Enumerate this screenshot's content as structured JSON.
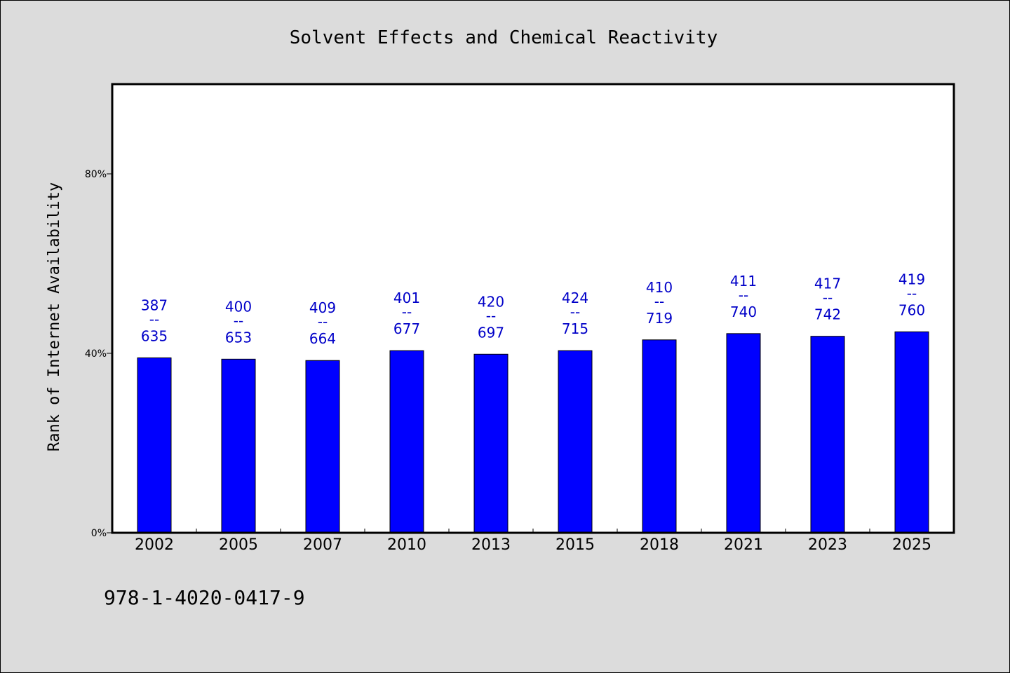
{
  "chart_data": {
    "type": "bar",
    "title": "Solvent Effects and Chemical Reactivity",
    "ylabel": "Rank of Internet Availability",
    "xlabel": "",
    "ylim": [
      0,
      100
    ],
    "yticks": [
      0,
      40,
      80
    ],
    "ytick_labels": [
      "0%",
      "40%",
      "80%"
    ],
    "categories": [
      "2002",
      "2005",
      "2007",
      "2010",
      "2013",
      "2015",
      "2018",
      "2021",
      "2023",
      "2025"
    ],
    "values": [
      39,
      38.7,
      38.4,
      40.6,
      39.8,
      40.6,
      43,
      44.4,
      43.8,
      44.8
    ],
    "data_labels": [
      {
        "top": "387",
        "sep": "--",
        "bottom": "635"
      },
      {
        "top": "400",
        "sep": "--",
        "bottom": "653"
      },
      {
        "top": "409",
        "sep": "--",
        "bottom": "664"
      },
      {
        "top": "401",
        "sep": "--",
        "bottom": "677"
      },
      {
        "top": "420",
        "sep": "--",
        "bottom": "697"
      },
      {
        "top": "424",
        "sep": "--",
        "bottom": "715"
      },
      {
        "top": "410",
        "sep": "--",
        "bottom": "719"
      },
      {
        "top": "411",
        "sep": "--",
        "bottom": "740"
      },
      {
        "top": "417",
        "sep": "--",
        "bottom": "742"
      },
      {
        "top": "419",
        "sep": "--",
        "bottom": "760"
      }
    ],
    "bar_color": "#0000ff",
    "label_color": "#0000c8",
    "plot_background": "#ffffff",
    "grid": false
  },
  "footer": {
    "isbn": "978-1-4020-0417-9"
  }
}
